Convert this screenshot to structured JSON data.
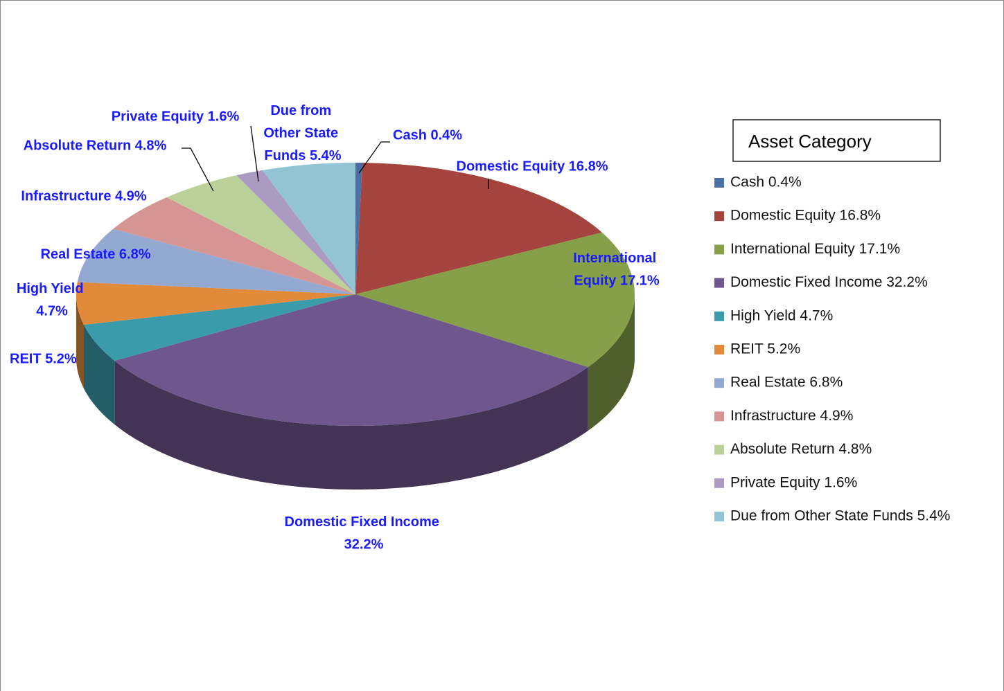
{
  "chart_data": {
    "type": "pie",
    "legend_title": "Asset Category",
    "legend": "right",
    "categories": [
      "Cash 0.4%",
      "Domestic Equity 16.8%",
      "International Equity 17.1%",
      "Domestic Fixed Income 32.2%",
      "High Yield 4.7%",
      "REIT 5.2%",
      "Real Estate 6.8%",
      "Infrastructure 4.9%",
      "Absolute Return 4.8%",
      "Private Equity 1.6%",
      "Due from Other State Funds 5.4%"
    ],
    "values": [
      0.4,
      16.8,
      17.1,
      32.2,
      4.7,
      5.2,
      6.8,
      4.9,
      4.8,
      1.6,
      5.4
    ],
    "colors": [
      "#4a6fa5",
      "#a5433f",
      "#86a04a",
      "#6f578d",
      "#3a9bab",
      "#e08a3a",
      "#93a9d2",
      "#d69592",
      "#bcd09a",
      "#ab9bc2",
      "#93c4d5"
    ]
  }
}
